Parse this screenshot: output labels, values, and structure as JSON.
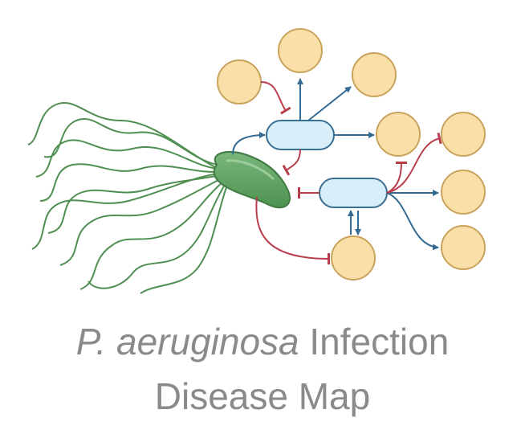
{
  "caption": {
    "line1_italic": "P. aeruginosa",
    "line1_rest": " Infection",
    "line2": "Disease Map"
  },
  "colors": {
    "background": "#ffffff",
    "bacterium_fill": "#5a9e5c",
    "bacterium_stroke": "#3f7a44",
    "flagella": "#4f8f52",
    "node_fill": "#fae0a8",
    "node_stroke": "#c9a35c",
    "hub_fill": "#d8eef8",
    "hub_stroke": "#3a6f96",
    "activation_arrow": "#336b94",
    "inhibition_arrow": "#b83e4c",
    "caption_text": "#8a8a8a"
  },
  "icons": [
    "bacterium-icon",
    "flagellum-icon",
    "activation-arrow-icon",
    "inhibition-arrow-icon"
  ]
}
